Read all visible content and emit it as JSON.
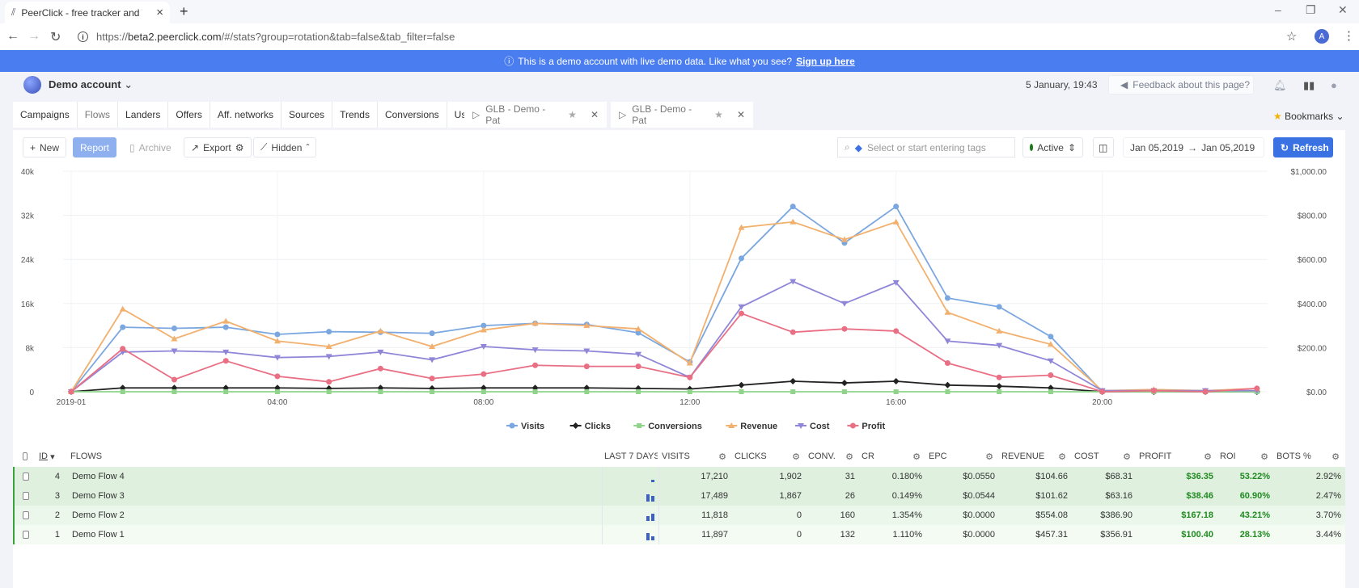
{
  "browser": {
    "tab_title": "PeerClick - free tracker and TDS",
    "url_prefix": "https://",
    "url_host": "beta2.peerclick.com",
    "url_path": "/#/stats?group=rotation&tab=false&tab_filter=false",
    "profile_letter": "A"
  },
  "banner": {
    "text": "This is a demo account with live demo data. Like what you see?",
    "link": "Sign up here"
  },
  "header": {
    "account": "Demo account",
    "datetime": "5 January, 19:43",
    "feedback": "Feedback about this page?"
  },
  "nav": {
    "tabs": [
      "Campaigns",
      "Flows",
      "Landers",
      "Offers",
      "Aff. networks",
      "Sources",
      "Trends",
      "Conversions",
      "Users"
    ],
    "pinned": [
      "GLB - Demo - Pat",
      "GLB - Demo - Pat"
    ],
    "bookmarks": "Bookmarks"
  },
  "toolbar": {
    "new": "New",
    "report": "Report",
    "archive": "Archive",
    "export": "Export",
    "hidden": "Hidden",
    "tags_placeholder": "Select or start entering tags",
    "status": "Active",
    "date_from": "Jan 05,2019",
    "date_to": "Jan 05,2019",
    "refresh": "Refresh"
  },
  "colors": {
    "visits": "#7ba7e0",
    "clicks": "#222222",
    "conversions": "#8fd48a",
    "revenue": "#f2b06e",
    "cost": "#8f86d8",
    "profit": "#e96f84"
  },
  "chart_data": {
    "type": "line",
    "x_ticks": [
      "2019-01",
      "04:00",
      "08:00",
      "12:00",
      "16:00",
      "20:00"
    ],
    "x": [
      0,
      1,
      2,
      3,
      4,
      5,
      6,
      7,
      8,
      9,
      10,
      11,
      12,
      13,
      14,
      15,
      16,
      17,
      18,
      19,
      20,
      21,
      22,
      23
    ],
    "y_left_ticks": [
      "0",
      "8k",
      "16k",
      "24k",
      "32k",
      "40k"
    ],
    "y_left_range": [
      0,
      40000
    ],
    "y_right_ticks": [
      "$0.00",
      "$200.00",
      "$400.00",
      "$600.00",
      "$800.00",
      "$1,000.00"
    ],
    "y_right_range": [
      0,
      1000
    ],
    "grid": true,
    "legend_placement": "bottom-center",
    "series": [
      {
        "name": "Visits",
        "axis": "left",
        "marker": "circle",
        "values": [
          0,
          11700,
          11500,
          11700,
          10400,
          10900,
          10800,
          10600,
          12000,
          12400,
          12200,
          10700,
          5400,
          24200,
          33600,
          27000,
          33600,
          17000,
          15400,
          10000,
          0,
          0,
          0,
          0
        ]
      },
      {
        "name": "Clicks",
        "axis": "left",
        "marker": "diamond",
        "values": [
          0,
          700,
          700,
          700,
          700,
          600,
          700,
          600,
          700,
          700,
          700,
          600,
          500,
          1200,
          1900,
          1600,
          1900,
          1200,
          1000,
          700,
          0,
          0,
          0,
          0
        ]
      },
      {
        "name": "Conversions",
        "axis": "left",
        "marker": "square",
        "values": [
          0,
          0,
          0,
          0,
          0,
          0,
          0,
          0,
          0,
          0,
          0,
          0,
          0,
          0,
          0,
          0,
          0,
          0,
          0,
          0,
          0,
          0,
          0,
          0
        ]
      },
      {
        "name": "Revenue",
        "axis": "right",
        "marker": "triangle-up",
        "values": [
          0,
          375,
          240,
          320,
          230,
          205,
          275,
          205,
          280,
          310,
          300,
          285,
          130,
          745,
          770,
          690,
          770,
          360,
          275,
          215,
          5,
          10,
          5,
          15
        ]
      },
      {
        "name": "Cost",
        "axis": "right",
        "marker": "triangle-down",
        "values": [
          0,
          180,
          185,
          180,
          155,
          160,
          180,
          145,
          205,
          190,
          185,
          170,
          65,
          385,
          500,
          400,
          495,
          230,
          210,
          140,
          5,
          5,
          5,
          5
        ]
      },
      {
        "name": "Profit",
        "axis": "right",
        "marker": "circle",
        "values": [
          0,
          195,
          55,
          140,
          70,
          45,
          105,
          60,
          80,
          120,
          115,
          115,
          65,
          355,
          270,
          285,
          275,
          130,
          65,
          75,
          0,
          5,
          0,
          15
        ]
      }
    ]
  },
  "table": {
    "headers": {
      "id": "ID",
      "flows": "FLOWS",
      "last7": "LAST 7 DAYS",
      "visits": "VISITS",
      "clicks": "CLICKS",
      "conv": "CONV.",
      "cr": "CR",
      "epc": "EPC",
      "revenue": "REVENUE",
      "cost": "COST",
      "profit": "PROFIT",
      "roi": "ROI",
      "bots": "BOTS %"
    },
    "rows": [
      {
        "id": "4",
        "name": "Demo Flow 4",
        "last7": [
          0,
          0,
          0,
          0,
          3
        ],
        "visits": "17,210",
        "clicks": "1,902",
        "conv": "31",
        "cr": "0.180%",
        "epc": "$0.0550",
        "revenue": "$104.66",
        "cost": "$68.31",
        "profit": "$36.35",
        "roi": "53.22%",
        "bots": "2.92%",
        "bg": "#dff0df"
      },
      {
        "id": "3",
        "name": "Demo Flow 3",
        "last7": [
          0,
          0,
          0,
          9,
          7
        ],
        "visits": "17,489",
        "clicks": "1,867",
        "conv": "26",
        "cr": "0.149%",
        "epc": "$0.0544",
        "revenue": "$101.62",
        "cost": "$63.16",
        "profit": "$38.46",
        "roi": "60.90%",
        "bots": "2.47%",
        "bg": "#dff0df"
      },
      {
        "id": "2",
        "name": "Demo Flow 2",
        "last7": [
          0,
          0,
          0,
          6,
          9
        ],
        "visits": "11,818",
        "clicks": "0",
        "conv": "160",
        "cr": "1.354%",
        "epc": "$0.0000",
        "revenue": "$554.08",
        "cost": "$386.90",
        "profit": "$167.18",
        "roi": "43.21%",
        "bots": "3.70%",
        "bg": "#ebf7eb"
      },
      {
        "id": "1",
        "name": "Demo Flow 1",
        "last7": [
          0,
          0,
          0,
          9,
          5
        ],
        "visits": "11,897",
        "clicks": "0",
        "conv": "132",
        "cr": "1.110%",
        "epc": "$0.0000",
        "revenue": "$457.31",
        "cost": "$356.91",
        "profit": "$100.40",
        "roi": "28.13%",
        "bots": "3.44%",
        "bg": "#f3fbf3"
      }
    ]
  }
}
